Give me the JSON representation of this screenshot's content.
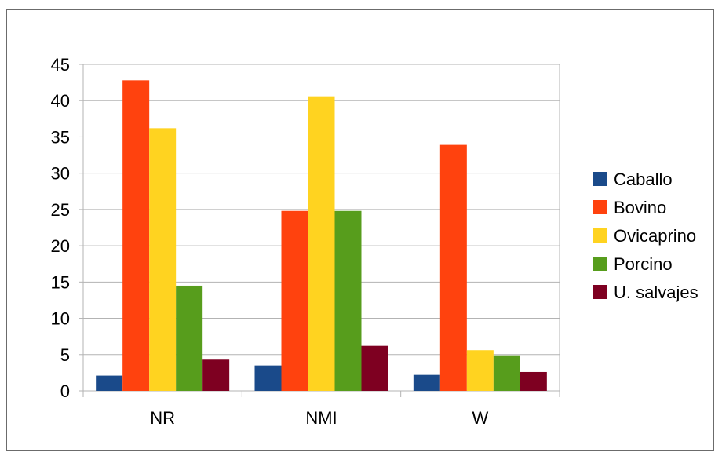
{
  "chart_data": {
    "type": "bar",
    "title": "",
    "xlabel": "",
    "ylabel": "",
    "categories": [
      "NR",
      "NMI",
      "W"
    ],
    "ylim": [
      0,
      45
    ],
    "yticks": [
      0,
      5,
      10,
      15,
      20,
      25,
      30,
      35,
      40,
      45
    ],
    "ytick_labels": [
      "0",
      "5",
      "10",
      "15",
      "20",
      "25",
      "30",
      "35",
      "40",
      "45"
    ],
    "grid": true,
    "legend_position": "right",
    "series": [
      {
        "name": "Caballo",
        "color": "#1a4a8a",
        "values": [
          2.1,
          3.5,
          2.2
        ]
      },
      {
        "name": "Bovino",
        "color": "#ff420e",
        "values": [
          42.8,
          24.8,
          33.9
        ]
      },
      {
        "name": "Ovicaprino",
        "color": "#ffd320",
        "values": [
          36.2,
          40.6,
          5.6
        ]
      },
      {
        "name": "Porcino",
        "color": "#579d1c",
        "values": [
          14.5,
          24.8,
          4.9
        ]
      },
      {
        "name": "U. salvajes",
        "color": "#7e0021",
        "values": [
          4.3,
          6.2,
          2.6
        ]
      }
    ]
  }
}
